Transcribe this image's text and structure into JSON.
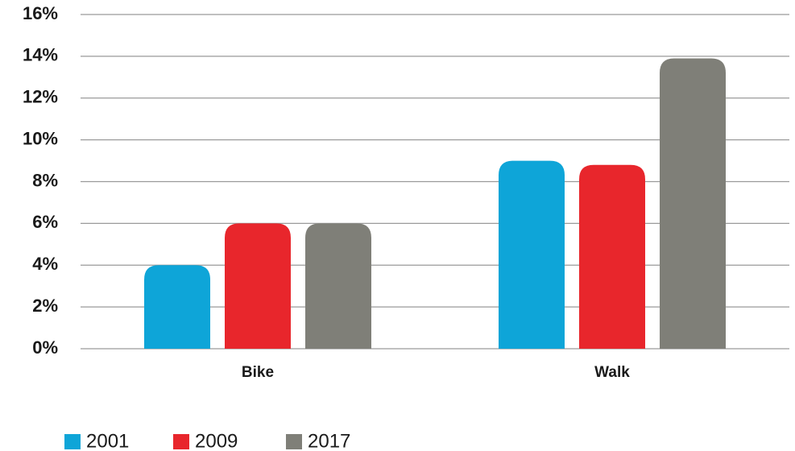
{
  "chart_data": {
    "type": "bar",
    "categories": [
      "Bike",
      "Walk"
    ],
    "series": [
      {
        "name": "2001",
        "color": "#0ea5d8",
        "values": [
          4,
          9
        ]
      },
      {
        "name": "2009",
        "color": "#e8262c",
        "values": [
          6,
          8.8
        ]
      },
      {
        "name": "2017",
        "color": "#7f7f78",
        "values": [
          6,
          13.9
        ]
      }
    ],
    "ylim": [
      0,
      16
    ],
    "yticks": [
      {
        "value": 0,
        "label": "0%"
      },
      {
        "value": 2,
        "label": "2%"
      },
      {
        "value": 4,
        "label": "4%"
      },
      {
        "value": 6,
        "label": "6%"
      },
      {
        "value": 8,
        "label": "8%"
      },
      {
        "value": 10,
        "label": "10%"
      },
      {
        "value": 12,
        "label": "12%"
      },
      {
        "value": 14,
        "label": "14%"
      },
      {
        "value": 16,
        "label": "16%"
      }
    ],
    "grid": true
  }
}
